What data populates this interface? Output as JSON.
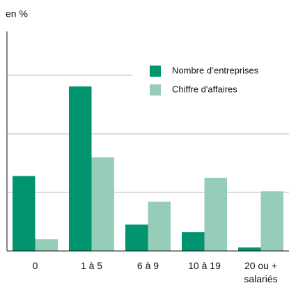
{
  "chart_data": {
    "type": "bar",
    "ylabel": "en %",
    "categories": [
      "0",
      "1 à 5",
      "6 à 9",
      "10 à 19",
      "20 ou +\nsalariés"
    ],
    "series": [
      {
        "name": "Nombre d’entreprises",
        "color": "#00956e",
        "values": [
          12.8,
          28.1,
          4.5,
          3.2,
          0.6
        ]
      },
      {
        "name": "Chiffre d'affaires",
        "color": "#96cdb9",
        "values": [
          2.0,
          16.0,
          8.4,
          12.5,
          10.2
        ]
      }
    ],
    "ylim": [
      0,
      37.5
    ],
    "yticks": [
      10,
      20,
      30
    ],
    "grid": true,
    "legend": "top-right"
  }
}
